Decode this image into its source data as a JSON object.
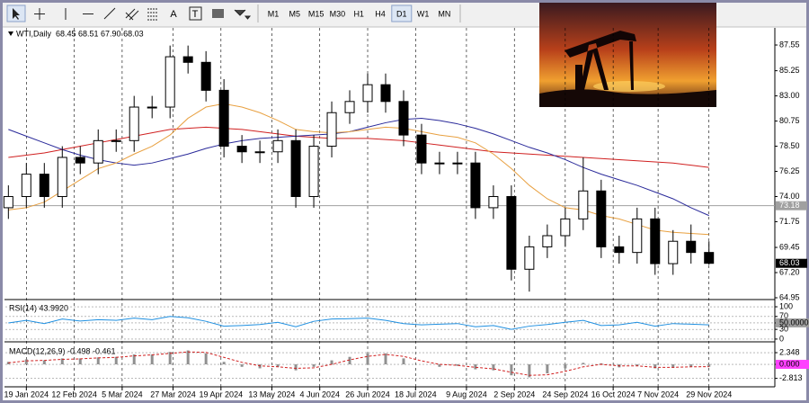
{
  "toolbar": {
    "tools": [
      "A",
      "T"
    ],
    "timeframes": [
      "M1",
      "M5",
      "M15",
      "M30",
      "H1",
      "H4",
      "D1",
      "W1",
      "MN"
    ],
    "active_timeframe": "D1"
  },
  "chart_data": [
    {
      "type": "candlestick",
      "title": "WTI,Daily",
      "ohlc_text": "68.45 68.51 67.90 68.03",
      "x": [
        1,
        7,
        13,
        19,
        25,
        31,
        37,
        43,
        49,
        55,
        61,
        67,
        73,
        79,
        85,
        91,
        97,
        103,
        109,
        115,
        121,
        127,
        133,
        139,
        145,
        151,
        157,
        163,
        169,
        175,
        181,
        187,
        193,
        199,
        205,
        211,
        217,
        223,
        229,
        235
      ],
      "open": [
        73,
        74,
        76,
        74,
        77.5,
        77,
        79,
        79,
        82,
        82,
        86.5,
        86,
        83.5,
        78.5,
        78,
        78,
        79,
        74,
        78.5,
        81.5,
        82.5,
        84,
        82.5,
        79.5,
        77,
        77,
        77,
        73,
        74,
        67.5,
        69.5,
        70.5,
        72,
        74.5,
        69.5,
        69,
        72,
        68,
        70,
        69
      ],
      "high": [
        75,
        77,
        77,
        78.5,
        78.5,
        80,
        80,
        83,
        83,
        87.5,
        87.5,
        87,
        84.5,
        79.5,
        79,
        80,
        80,
        79.5,
        82.5,
        83.5,
        85,
        85,
        83.5,
        80.5,
        78,
        78,
        78,
        75,
        75,
        70.5,
        71.5,
        73,
        77.5,
        75.5,
        70.5,
        73,
        73,
        71,
        71.5,
        70
      ],
      "low": [
        72,
        73,
        73,
        73,
        76,
        76,
        78,
        78,
        81,
        81,
        85,
        82.5,
        77.5,
        77,
        77,
        77,
        73,
        73,
        77.5,
        80.5,
        81.5,
        81.5,
        78.5,
        76,
        76,
        76,
        72,
        72,
        66.5,
        65.5,
        68.5,
        69.5,
        71,
        68.5,
        68,
        68,
        67,
        67,
        68,
        67.9
      ],
      "close": [
        74,
        76,
        74,
        77.5,
        77,
        79,
        79,
        82,
        82,
        86.5,
        86,
        83.5,
        78.5,
        78,
        78,
        79,
        74,
        78.5,
        81.5,
        82.5,
        84,
        82.5,
        79.5,
        77,
        77,
        77,
        73,
        74,
        67.5,
        69.5,
        70.5,
        72,
        74.5,
        69.5,
        69,
        72,
        68,
        70,
        69,
        68.03
      ],
      "up_color": "#ffffff",
      "down_color": "#000000",
      "moving_averages": [
        {
          "color": "#d02020",
          "values": [
            77.5,
            77.7,
            77.9,
            78.2,
            78.5,
            78.8,
            79.1,
            79.4,
            79.7,
            80,
            80.1,
            80.2,
            80.1,
            80,
            79.8,
            79.6,
            79.4,
            79.3,
            79.2,
            79.2,
            79.2,
            79.1,
            79,
            78.8,
            78.6,
            78.4,
            78.2,
            78,
            77.9,
            77.8,
            77.7,
            77.6,
            77.5,
            77.4,
            77.3,
            77.2,
            77.1,
            77,
            76.8,
            76.6
          ]
        },
        {
          "color": "#2a2a9a",
          "values": [
            80,
            79.4,
            78.8,
            78.2,
            77.7,
            77.3,
            77,
            76.8,
            77,
            77.4,
            77.8,
            78.3,
            78.7,
            79,
            79.2,
            79.3,
            79.4,
            79.5,
            79.6,
            79.8,
            80.2,
            80.6,
            80.9,
            81,
            80.8,
            80.5,
            80.1,
            79.6,
            79,
            78.4,
            77.9,
            77.3,
            76.6,
            76,
            75.5,
            75,
            74.4,
            73.8,
            73,
            72.3
          ]
        },
        {
          "color": "#e8a040",
          "values": [
            72.8,
            73,
            73.5,
            74.5,
            75.5,
            76.5,
            77,
            77.8,
            78.5,
            79.5,
            81,
            82,
            82.3,
            82,
            81.5,
            80.8,
            80,
            79.8,
            79.7,
            79.8,
            80,
            80.2,
            80.1,
            79.8,
            79.5,
            79.3,
            78.8,
            77.8,
            76.5,
            75,
            73.8,
            73,
            72.8,
            72.3,
            72,
            71.5,
            71,
            70.8,
            70.7,
            70.6
          ]
        }
      ],
      "price_line": 73.18,
      "price_line_color": "#a0a0a0",
      "last_price": 68.03,
      "xlim": [
        0,
        257
      ],
      "xticks": [
        {
          "value": 7,
          "label": "19 Jan 2024"
        },
        {
          "value": 23,
          "label": "12 Feb 2024"
        },
        {
          "value": 39,
          "label": "5 Mar 2024"
        },
        {
          "value": 56,
          "label": "27 Mar 2024"
        },
        {
          "value": 72,
          "label": "19 Apr 2024"
        },
        {
          "value": 89,
          "label": "13 May 2024"
        },
        {
          "value": 105,
          "label": "4 Jun 2024"
        },
        {
          "value": 121,
          "label": "26 Jun 2024"
        },
        {
          "value": 137,
          "label": "18 Jul 2024"
        },
        {
          "value": 154,
          "label": "9 Aug 2024"
        },
        {
          "value": 170,
          "label": "2 Sep 2024"
        },
        {
          "value": 187,
          "label": "24 Sep 2024"
        },
        {
          "value": 203,
          "label": "16 Oct 2024"
        },
        {
          "value": 218,
          "label": "7 Nov 2024"
        },
        {
          "value": 235,
          "label": "29 Nov 2024"
        }
      ],
      "ylim": [
        64.87,
        89.0
      ],
      "yticks": [
        {
          "value": 87.55,
          "label": "87.55"
        },
        {
          "value": 85.25,
          "label": "85.25"
        },
        {
          "value": 83,
          "label": "83.00"
        },
        {
          "value": 80.75,
          "label": "80.75"
        },
        {
          "value": 78.5,
          "label": "78.50"
        },
        {
          "value": 76.25,
          "label": "76.25"
        },
        {
          "value": 74,
          "label": "74.00"
        },
        {
          "value": 71.75,
          "label": "71.75"
        },
        {
          "value": 69.45,
          "label": "69.45"
        },
        {
          "value": 67.2,
          "label": "67.20"
        },
        {
          "value": 64.95,
          "label": "64.95"
        }
      ],
      "grid": "vertical"
    },
    {
      "type": "line",
      "title": "RSI(14) 43.9920",
      "color": "#1e8fe0",
      "values": [
        50,
        58,
        48,
        62,
        56,
        60,
        58,
        65,
        60,
        70,
        66,
        55,
        40,
        42,
        45,
        52,
        38,
        55,
        62,
        63,
        65,
        58,
        48,
        44,
        46,
        48,
        38,
        42,
        30,
        40,
        45,
        52,
        58,
        42,
        44,
        52,
        40,
        48,
        46,
        43.99
      ],
      "ylim": [
        -3,
        114
      ],
      "yticks": [
        100,
        70,
        {
          "value": 50,
          "label": "50.0000"
        },
        30,
        0
      ],
      "level_label_color": "#a0a0a0"
    },
    {
      "type": "macd",
      "title": "MACD(12,26,9) -0.498 -0.461",
      "color": "#909090",
      "signal_color": "#d02020",
      "histogram": [
        0.5,
        1,
        0.8,
        1.2,
        1.2,
        1.4,
        1.5,
        2,
        2,
        2.5,
        2.8,
        2.2,
        0.5,
        -0.5,
        -0.8,
        -0.5,
        -1.2,
        -0.5,
        0.8,
        1.5,
        2.2,
        2.2,
        1.2,
        0,
        -0.5,
        -0.3,
        -1,
        -1.2,
        -2.2,
        -2.6,
        -1.8,
        -0.8,
        0.3,
        0.2,
        -0.6,
        -0.3,
        -0.8,
        -0.7,
        -0.5,
        -0.498
      ],
      "signal": [
        0.3,
        0.7,
        0.8,
        1,
        1.1,
        1.3,
        1.4,
        1.7,
        1.9,
        2.2,
        2.5,
        2.4,
        1.4,
        0.4,
        -0.3,
        -0.5,
        -0.8,
        -0.7,
        0,
        0.9,
        1.6,
        2,
        1.6,
        0.7,
        0,
        -0.2,
        -0.6,
        -0.9,
        -1.6,
        -2.2,
        -2.1,
        -1.4,
        -0.5,
        0,
        -0.3,
        -0.3,
        -0.6,
        -0.6,
        -0.5,
        -0.461
      ],
      "ylim": [
        -4.15,
        3.8
      ],
      "yticks": [
        2.348,
        {
          "value": 0,
          "label": "0.000"
        },
        -2.813
      ],
      "level_label_color": "#ff40ff"
    }
  ]
}
